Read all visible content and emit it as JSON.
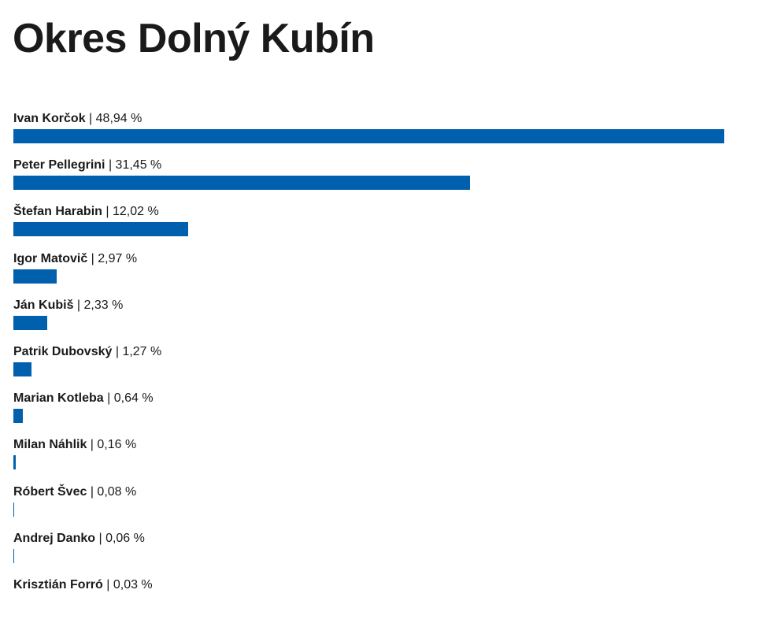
{
  "title": "Okres Dolný Kubín",
  "chart_data": {
    "type": "bar",
    "orientation": "horizontal",
    "title": "Okres Dolný Kubín",
    "separator": " | ",
    "unit": "%",
    "bar_color": "#0060ad",
    "categories": [
      "Ivan Korčok",
      "Peter Pellegrini",
      "Štefan Harabin",
      "Igor Matovič",
      "Ján Kubiš",
      "Patrik Dubovský",
      "Marian Kotleba",
      "Milan Náhlik",
      "Róbert Švec",
      "Andrej Danko",
      "Krisztián Forró"
    ],
    "values": [
      48.94,
      31.45,
      12.02,
      2.97,
      2.33,
      1.27,
      0.64,
      0.16,
      0.08,
      0.06,
      0.03
    ],
    "value_labels": [
      "48,94 %",
      "31,45 %",
      "12,02 %",
      "2,97 %",
      "2,33 %",
      "1,27 %",
      "0,64 %",
      "0,16 %",
      "0,08 %",
      "0,06 %",
      "0,03 %"
    ]
  }
}
